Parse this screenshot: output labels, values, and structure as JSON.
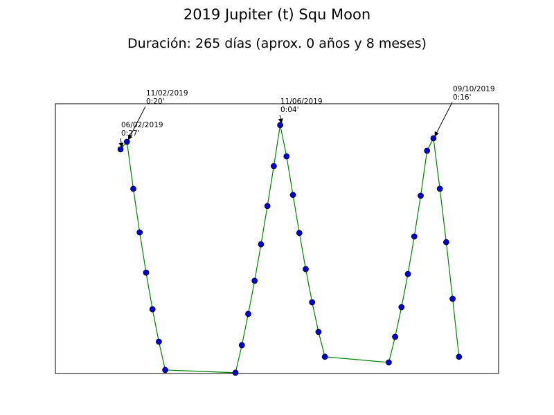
{
  "chart_data": {
    "type": "line",
    "title": "2019 Jupiter (t) Squ Moon",
    "subtitle": "Duración: 265 días (aprox. 0 años y 8 meses)",
    "x": [
      0,
      5,
      10,
      15,
      20,
      25,
      30,
      35,
      90,
      95,
      100,
      105,
      110,
      115,
      120,
      125,
      130,
      135,
      140,
      145,
      150,
      155,
      160,
      210,
      215,
      220,
      225,
      230,
      235,
      240,
      245,
      250,
      255,
      260,
      265
    ],
    "series": [
      {
        "color": "#008000",
        "marker_color": "#0000cc",
        "values": [
          83.1,
          85.9,
          68.5,
          52.3,
          37.4,
          23.8,
          11.8,
          1.3,
          0.3,
          10.5,
          22.1,
          34.4,
          47.9,
          62.1,
          76.9,
          92.1,
          80.5,
          66.2,
          52.1,
          38.7,
          26.4,
          15.4,
          6.2,
          4.1,
          13.6,
          24.6,
          36.9,
          50.8,
          65.9,
          82.6,
          87.2,
          68.5,
          48.7,
          27.7,
          6.2
        ]
      }
    ],
    "xlim": [
      -51,
      296
    ],
    "ylim": [
      0,
      100
    ],
    "annotations": [
      {
        "lines": [
          "11/02/2019",
          "0:20'"
        ]
      },
      {
        "lines": [
          "06/02/2019",
          "0:27'"
        ]
      },
      {
        "lines": [
          "11/06/2019",
          "0:04'"
        ]
      },
      {
        "lines": [
          "09/10/2019",
          "0:16'"
        ]
      }
    ]
  }
}
